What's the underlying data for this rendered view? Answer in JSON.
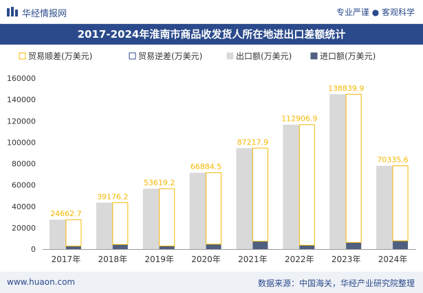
{
  "header": {
    "brand": "华经情报网",
    "tagline": "专业严谨 ● 客观科学"
  },
  "footer": {
    "left": "www.huaon.com",
    "right": "数据来源：中国海关，华经产业研究院整理"
  },
  "colors": {
    "header_bg": "#2b4a8b",
    "export": "#d9d9d9",
    "import": "#4f5f7f",
    "surplus_border": "#f5b800",
    "deficit_border": "#2b4a8b",
    "label": "#f5b800"
  },
  "chart_data": {
    "type": "bar",
    "title": "2017-2024年淮南市商品收发货人所在地进出口差额统计",
    "categories": [
      "2017年",
      "2018年",
      "2019年",
      "2020年",
      "2021年",
      "2022年",
      "2023年",
      "2024年"
    ],
    "series": [
      {
        "name": "贸易顺差(万美元)",
        "values": [
          24662.7,
          39176.2,
          53619.2,
          66884.5,
          87217.9,
          112906.9,
          138839.9,
          70335.6
        ]
      },
      {
        "name": "贸易逆差(万美元)",
        "values": [
          0,
          0,
          0,
          0,
          0,
          0,
          0,
          0
        ]
      },
      {
        "name": "出口额(万美元)",
        "values": [
          27500,
          43500,
          56500,
          71500,
          94500,
          116500,
          145000,
          78000
        ]
      },
      {
        "name": "进口额(万美元)",
        "values": [
          2800,
          4300,
          2900,
          4600,
          7300,
          3600,
          6200,
          7700
        ]
      }
    ],
    "ylim": [
      0,
      160000
    ],
    "yticks": [
      0,
      20000,
      40000,
      60000,
      80000,
      100000,
      120000,
      140000,
      160000
    ],
    "legend_position": "top",
    "grid": false
  }
}
